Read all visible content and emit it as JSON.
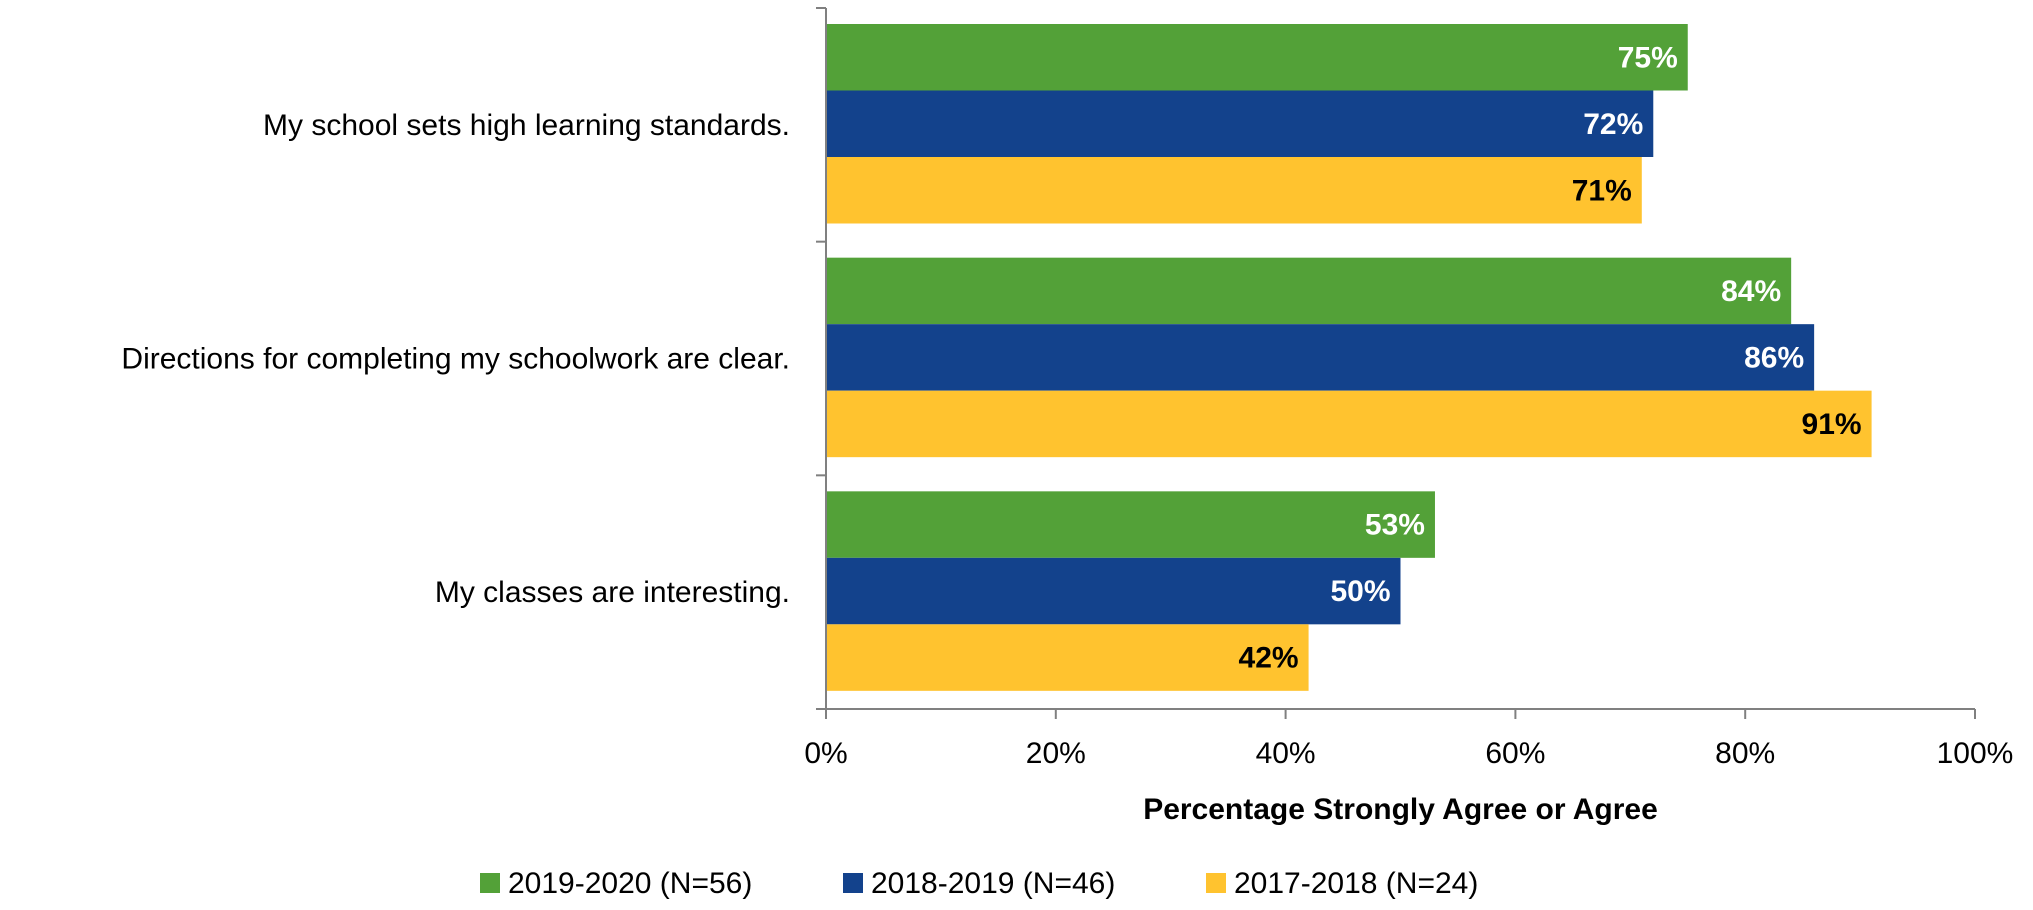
{
  "chart_data": {
    "type": "bar",
    "orientation": "horizontal",
    "categories": [
      "My school sets high learning standards.",
      "Directions for completing my schoolwork are clear.",
      "My classes are interesting."
    ],
    "series": [
      {
        "name": "2019-2020 (N=56)",
        "color": "#53A138",
        "label_color": "#FFFFFF",
        "values": [
          75,
          84,
          53
        ]
      },
      {
        "name": "2018-2019 (N=46)",
        "color": "#13428C",
        "label_color": "#FFFFFF",
        "values": [
          72,
          86,
          50
        ]
      },
      {
        "name": "2017-2018 (N=24)",
        "color": "#FFC32F",
        "label_color": "#000000",
        "values": [
          71,
          91,
          42
        ]
      }
    ],
    "value_suffix": "%",
    "xlabel": "Percentage Strongly Agree or Agree",
    "ylabel": "",
    "xlim": [
      0,
      100
    ],
    "x_ticks": [
      0,
      20,
      40,
      60,
      80,
      100
    ],
    "x_tick_labels": [
      "0%",
      "20%",
      "40%",
      "60%",
      "80%",
      "100%"
    ],
    "grid": false,
    "legend_position": "bottom"
  }
}
